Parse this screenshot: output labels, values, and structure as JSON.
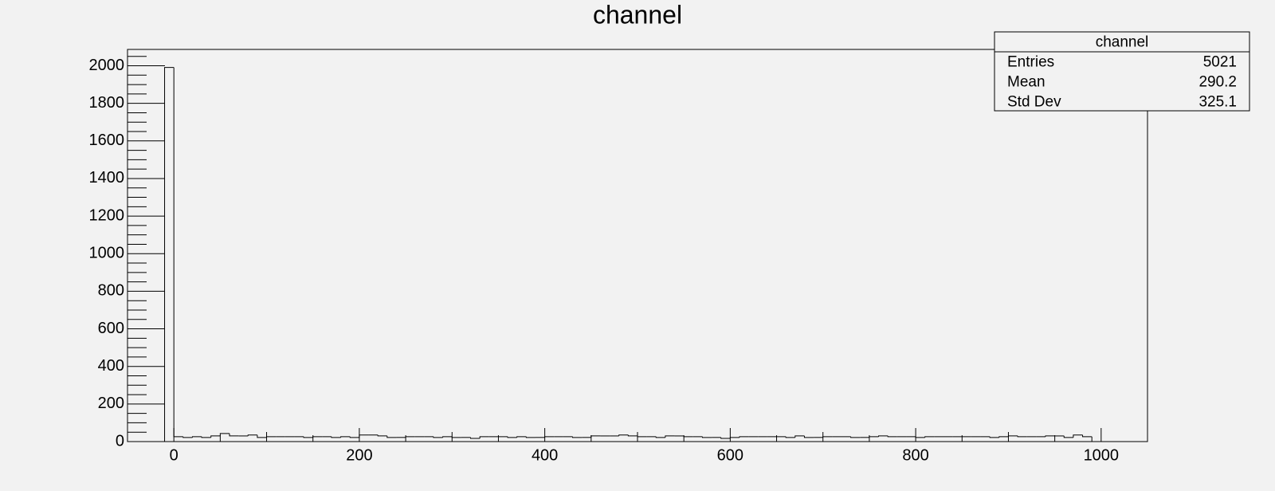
{
  "chart_data": {
    "type": "histogram",
    "title": "channel",
    "bins": [
      -10,
      0,
      10,
      20,
      30,
      40,
      50,
      60,
      70,
      80,
      90,
      100,
      110,
      120,
      130,
      140,
      150,
      160,
      170,
      180,
      190,
      200,
      210,
      220,
      230,
      240,
      250,
      260,
      270,
      280,
      290,
      300,
      310,
      320,
      330,
      340,
      350,
      360,
      370,
      380,
      390,
      400,
      410,
      420,
      430,
      440,
      450,
      460,
      470,
      480,
      490,
      500,
      510,
      520,
      530,
      540,
      550,
      560,
      570,
      580,
      590,
      600,
      610,
      620,
      630,
      640,
      650,
      660,
      670,
      680,
      690,
      700,
      710,
      720,
      730,
      740,
      750,
      760,
      770,
      780,
      790,
      800,
      810,
      820,
      830,
      840,
      850,
      860,
      870,
      880,
      890,
      900,
      910,
      920,
      930,
      940,
      950,
      960,
      970,
      980,
      990,
      1000
    ],
    "values": [
      1991,
      26,
      22,
      26,
      22,
      30,
      43,
      30,
      30,
      35,
      22,
      26,
      26,
      26,
      26,
      22,
      26,
      26,
      22,
      26,
      22,
      35,
      35,
      30,
      22,
      22,
      26,
      26,
      26,
      22,
      26,
      22,
      22,
      17,
      26,
      26,
      26,
      22,
      26,
      22,
      22,
      26,
      26,
      26,
      22,
      22,
      30,
      30,
      30,
      35,
      30,
      26,
      26,
      22,
      30,
      30,
      26,
      26,
      22,
      22,
      17,
      22,
      26,
      26,
      26,
      26,
      26,
      22,
      30,
      22,
      22,
      26,
      26,
      26,
      22,
      22,
      26,
      30,
      26,
      26,
      26,
      22,
      26,
      26,
      26,
      26,
      26,
      26,
      26,
      22,
      26,
      30,
      26,
      26,
      26,
      30,
      30,
      22,
      35,
      26,
      0
    ],
    "color": "#000000",
    "xlim": [
      -50,
      1050
    ],
    "xticks": [
      0,
      200,
      400,
      600,
      800,
      1000
    ],
    "ylim": [
      0,
      2087
    ],
    "yticks": [
      0,
      200,
      400,
      600,
      800,
      1000,
      1200,
      1400,
      1600,
      1800,
      2000
    ],
    "stats": {
      "title": "channel",
      "rows": [
        [
          "Entries",
          5021
        ],
        [
          "Mean",
          290.2
        ],
        [
          "Std Dev",
          325.1
        ]
      ]
    }
  }
}
